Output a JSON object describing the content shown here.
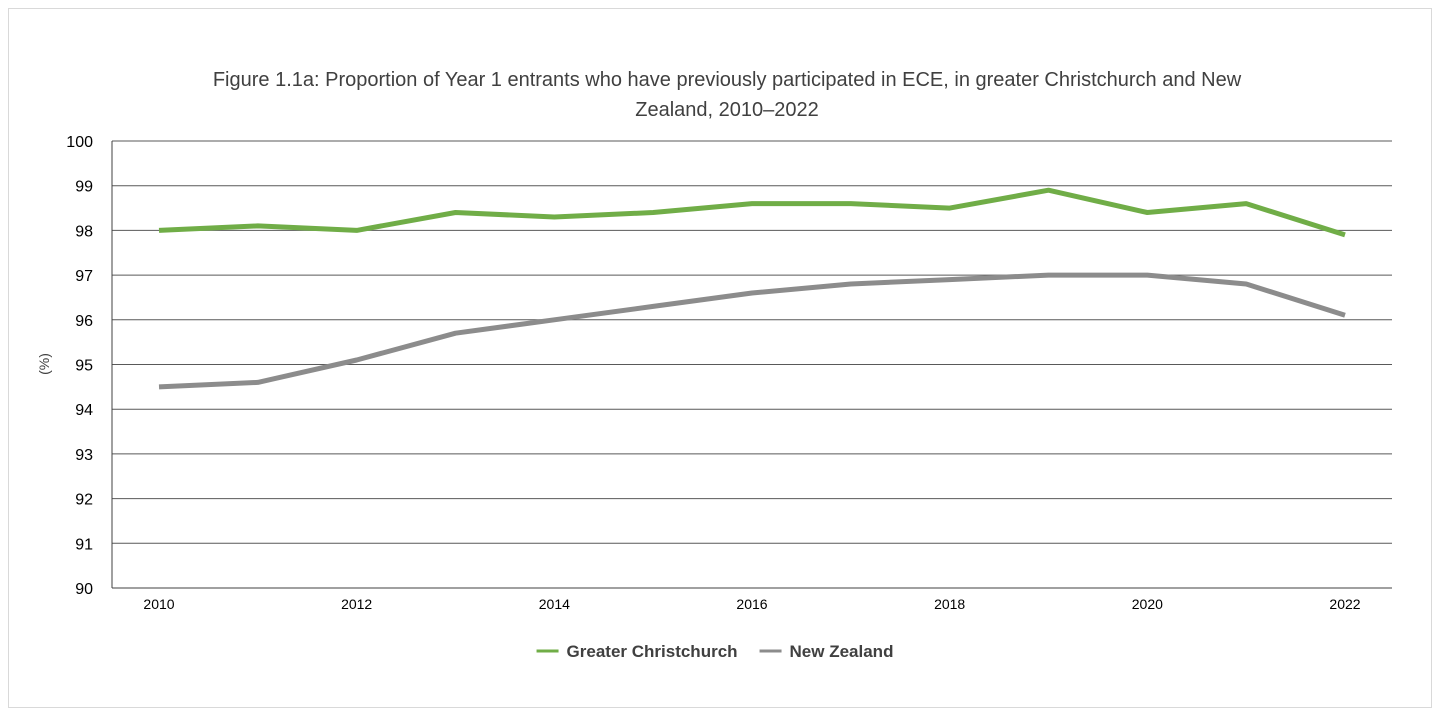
{
  "chart_data": {
    "type": "line",
    "title_lines": [
      "Figure 1.1a: Proportion of Year 1 entrants who have previously participated in ECE, in greater Christchurch and New",
      "Zealand, 2010–2022"
    ],
    "xlabel": "",
    "ylabel": "(%)",
    "x": [
      2010,
      2011,
      2012,
      2013,
      2014,
      2015,
      2016,
      2017,
      2018,
      2019,
      2020,
      2021,
      2022
    ],
    "x_tick_labels": [
      "2010",
      "2012",
      "2014",
      "2016",
      "2018",
      "2020",
      "2022"
    ],
    "ylim": [
      90,
      100
    ],
    "y_ticks": [
      "90",
      "91",
      "92",
      "93",
      "94",
      "95",
      "96",
      "97",
      "98",
      "99",
      "100"
    ],
    "grid": true,
    "legend_position": "bottom",
    "series": [
      {
        "name": "Greater Christchurch",
        "color": "#70ad47",
        "values": [
          98.0,
          98.1,
          98.0,
          98.4,
          98.3,
          98.4,
          98.6,
          98.6,
          98.5,
          98.9,
          98.4,
          98.6,
          97.9
        ]
      },
      {
        "name": "New Zealand",
        "color": "#8c8c8c",
        "values": [
          94.5,
          94.6,
          95.1,
          95.7,
          96.0,
          96.3,
          96.6,
          96.8,
          96.9,
          97.0,
          97.0,
          96.8,
          96.1
        ]
      }
    ]
  }
}
